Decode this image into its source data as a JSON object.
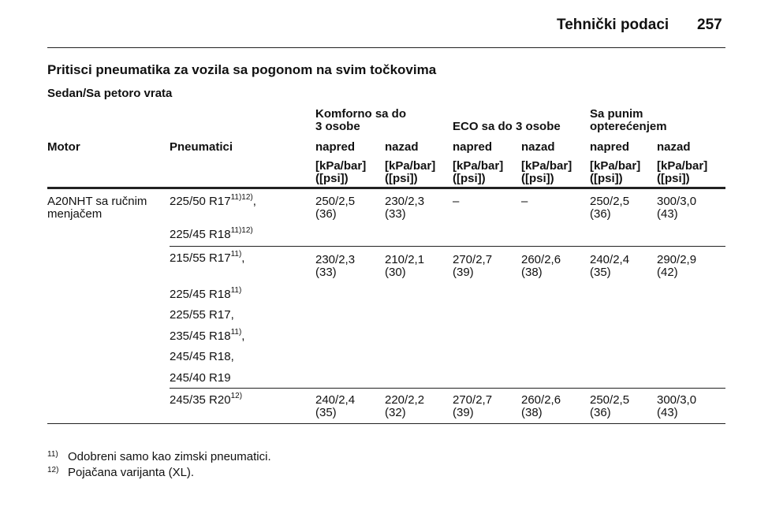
{
  "header": {
    "title": "Tehnički podaci",
    "page": "257"
  },
  "heading": "Pritisci pneumatika za vozila sa pogonom na svim točkovima",
  "subheading": "Sedan/Sa petoro vrata",
  "table": {
    "groups": [
      "Komforno sa do 3 osobe",
      "ECO sa do 3 osobe",
      "Sa punim opterećenjem"
    ],
    "columns": [
      "Motor",
      "Pneumatici",
      "napred",
      "nazad",
      "napred",
      "nazad",
      "napred",
      "nazad"
    ],
    "units": "[kPa/bar] ([psi])",
    "rows": [
      {
        "motor": "A20NHT sa ručnim menjačem",
        "tires": [
          {
            "text": "225/50 R17",
            "sup": "11)12)",
            "suffix": ","
          },
          {
            "text": "225/45 R18",
            "sup": "11)12)"
          }
        ],
        "values": [
          "250/2,5 (36)",
          "230/2,3 (33)",
          "–",
          "–",
          "250/2,5 (36)",
          "300/3,0 (43)"
        ]
      },
      {
        "tires": [
          {
            "text": "215/55 R17",
            "sup": "11)",
            "suffix": ","
          },
          {
            "text": "225/45 R18",
            "sup": "11)"
          },
          {
            "text": "225/55 R17,"
          },
          {
            "text": "235/45 R18",
            "sup": "11)",
            "suffix": ","
          },
          {
            "text": "245/45 R18,"
          },
          {
            "text": "245/40 R19"
          }
        ],
        "values": [
          "230/2,3 (33)",
          "210/2,1 (30)",
          "270/2,7 (39)",
          "260/2,6 (38)",
          "240/2,4 (35)",
          "290/2,9 (42)"
        ]
      },
      {
        "tires": [
          {
            "text": "245/35 R20",
            "sup": "12)"
          }
        ],
        "values": [
          "240/2,4 (35)",
          "220/2,2 (32)",
          "270/2,7 (39)",
          "260/2,6 (38)",
          "250/2,5 (36)",
          "300/3,0 (43)"
        ]
      }
    ]
  },
  "footnotes": [
    {
      "mark": "11)",
      "text": "Odobreni samo kao zimski pneumatici."
    },
    {
      "mark": "12)",
      "text": "Pojačana varijanta (XL)."
    }
  ]
}
